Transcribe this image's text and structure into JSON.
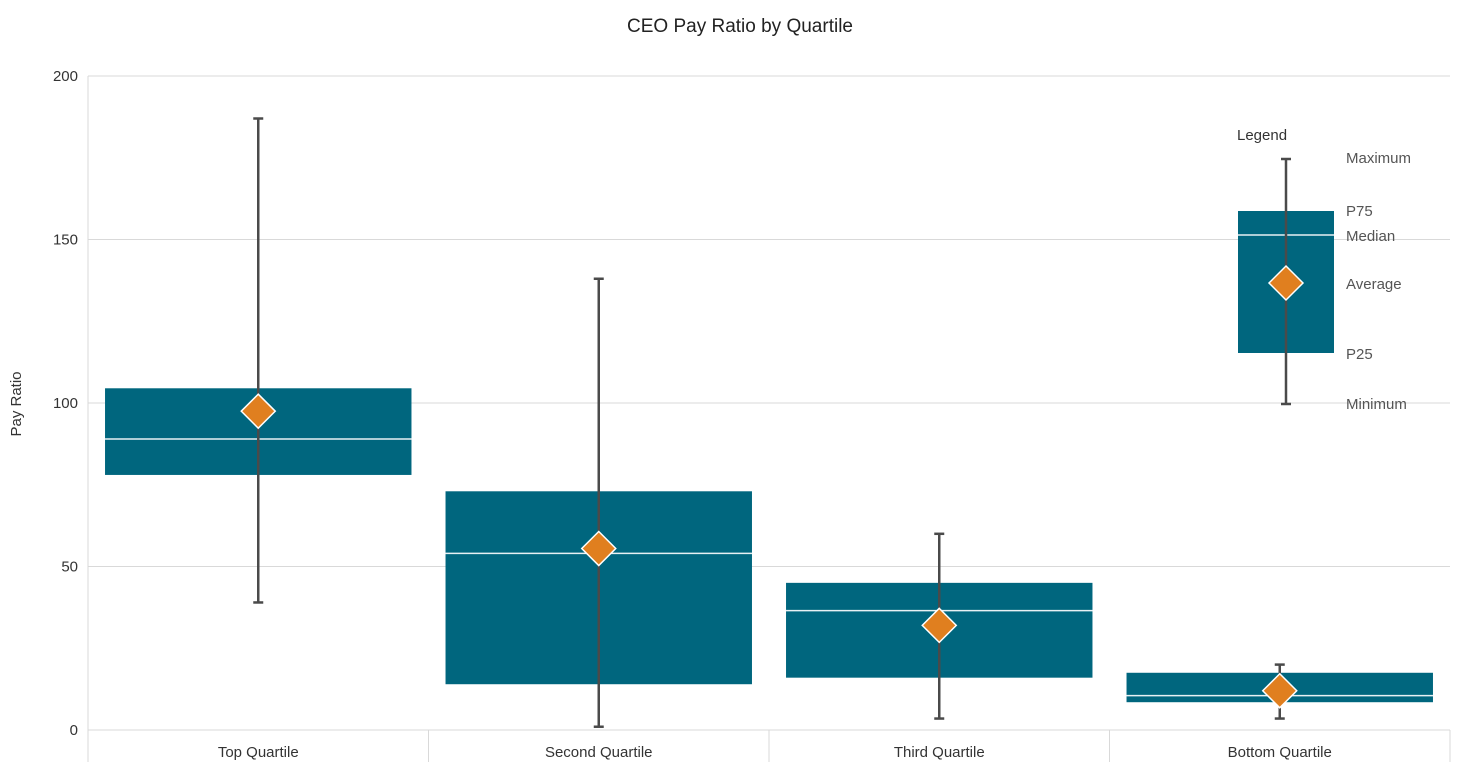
{
  "colors": {
    "box": "#00667e",
    "median": "#e8f1f4",
    "whisker": "#4a4a4a",
    "average_marker": "#e07f1f",
    "average_marker_stroke": "#ffffff",
    "grid": "#d9d9d9",
    "text": "#333333",
    "legend_text": "#555555"
  },
  "chart_data": {
    "type": "box",
    "title": "CEO Pay Ratio by Quartile",
    "ylabel": "Pay Ratio",
    "xlabel": "",
    "ylim": [
      0,
      200
    ],
    "yticks": [
      0,
      50,
      100,
      150,
      200
    ],
    "grid": true,
    "categories": [
      "Top Quartile",
      "Second Quartile",
      "Third Quartile",
      "Bottom Quartile"
    ],
    "series": [
      {
        "min": 39,
        "p25": 78,
        "median": 89,
        "p75": 104.5,
        "max": 187,
        "average": 97.5
      },
      {
        "min": 1,
        "p25": 14,
        "median": 54,
        "p75": 73,
        "max": 138,
        "average": 55.5
      },
      {
        "min": 3.5,
        "p25": 16,
        "median": 36.5,
        "p75": 45,
        "max": 60,
        "average": 32
      },
      {
        "min": 3.5,
        "p25": 8.5,
        "median": 10.5,
        "p75": 17.5,
        "max": 20,
        "average": 12
      }
    ],
    "legend": {
      "title": "Legend",
      "position": "top-right",
      "labels": {
        "max": "Maximum",
        "p75": "P75",
        "median": "Median",
        "average": "Average",
        "p25": "P25",
        "min": "Minimum"
      }
    }
  }
}
